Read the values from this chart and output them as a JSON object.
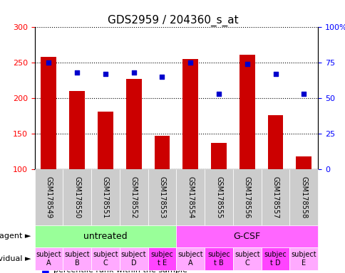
{
  "title": "GDS2959 / 204360_s_at",
  "samples": [
    "GSM178549",
    "GSM178550",
    "GSM178551",
    "GSM178552",
    "GSM178553",
    "GSM178554",
    "GSM178555",
    "GSM178556",
    "GSM178557",
    "GSM178558"
  ],
  "counts": [
    258,
    210,
    181,
    227,
    147,
    255,
    137,
    261,
    176,
    118
  ],
  "percentile_ranks": [
    75,
    68,
    67,
    68,
    65,
    75,
    53,
    74,
    67,
    53
  ],
  "ylim_left": [
    100,
    300
  ],
  "ylim_right": [
    0,
    100
  ],
  "yticks_left": [
    100,
    150,
    200,
    250,
    300
  ],
  "yticks_right": [
    0,
    25,
    50,
    75,
    100
  ],
  "bar_color": "#cc0000",
  "dot_color": "#0000cc",
  "bar_bottom": 100,
  "agent_groups": [
    {
      "label": "untreated",
      "start": 0,
      "end": 5,
      "color": "#99ff99"
    },
    {
      "label": "G-CSF",
      "start": 5,
      "end": 10,
      "color": "#ff66ff"
    }
  ],
  "individuals": [
    "subject\nA",
    "subject\nB",
    "subject\nC",
    "subject\nD",
    "subjec\nt E",
    "subject\nA",
    "subjec\nt B",
    "subject\nC",
    "subjec\nt D",
    "subject\nE"
  ],
  "individual_colors": [
    "#ffaaff",
    "#ffaaff",
    "#ffaaff",
    "#ffaaff",
    "#ff44ff",
    "#ffaaff",
    "#ff44ff",
    "#ffaaff",
    "#ff44ff",
    "#ffaaff"
  ],
  "agent_label_fontsize": 9,
  "individual_fontsize": 7,
  "tick_label_fontsize": 7,
  "title_fontsize": 11
}
